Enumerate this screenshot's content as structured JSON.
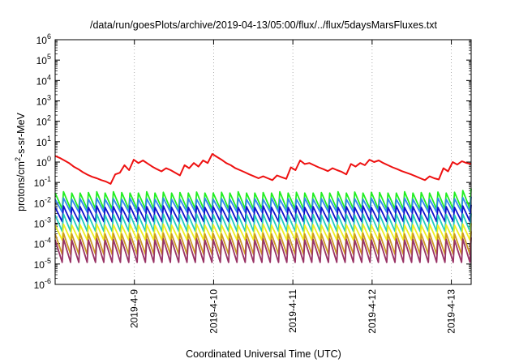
{
  "chart_data": {
    "type": "line",
    "title": "/data/run/goesPlots/archive/2019-04-13/05:00/flux/../flux/5daysMarsFluxes.txt",
    "xlabel": "Coordinated Universal Time (UTC)",
    "ylabel_base": "protons/cm",
    "ylabel_sup": "2",
    "ylabel_rest": "-s-sr-MeV",
    "yscale": "log",
    "ylim": [
      1e-06,
      1000000.0
    ],
    "ytick_exponents": [
      "-6",
      "-5",
      "-4",
      "-3",
      "-2",
      "-1",
      "0",
      "1",
      "2",
      "3",
      "4",
      "5",
      "6"
    ],
    "xlim": [
      0,
      5.25
    ],
    "xtick_labels": [
      "2019-4-9",
      "2019-4-10",
      "2019-4-11",
      "2019-4-12",
      "2019-4-13"
    ],
    "xtick_values": [
      1,
      2,
      3,
      4,
      5
    ],
    "grid": true,
    "legend": "none",
    "series": [
      {
        "color": "#ee1111",
        "values": [
          2.0,
          1.6,
          1.2,
          0.9,
          0.6,
          0.45,
          0.32,
          0.24,
          0.19,
          0.16,
          0.13,
          0.11,
          0.085,
          0.25,
          0.3,
          0.7,
          0.4,
          1.3,
          0.9,
          1.2,
          0.85,
          0.6,
          0.45,
          0.35,
          0.5,
          0.4,
          0.3,
          0.22,
          0.7,
          0.5,
          0.9,
          0.6,
          1.2,
          0.9,
          2.5,
          1.8,
          1.3,
          0.9,
          0.7,
          0.5,
          0.4,
          0.32,
          0.25,
          0.2,
          0.16,
          0.2,
          0.16,
          0.13,
          0.22,
          0.18,
          0.15,
          0.55,
          0.4,
          1.2,
          0.8,
          0.9,
          0.7,
          0.55,
          0.45,
          0.36,
          0.5,
          0.4,
          0.33,
          0.25,
          0.8,
          0.6,
          0.9,
          0.7,
          1.3,
          1.0,
          1.2,
          0.9,
          0.7,
          0.55,
          0.45,
          0.36,
          0.3,
          0.25,
          0.2,
          0.16,
          0.13,
          0.2,
          0.16,
          0.14,
          0.5,
          0.35,
          1.0,
          0.75,
          1.1,
          0.9,
          0.8
        ]
      },
      {
        "color": "#22ee22",
        "values": [
          0.03,
          0.035,
          0.03,
          0.03,
          0.032,
          0.035,
          0.03,
          0.035,
          0.032,
          0.03,
          0.03,
          0.035,
          0.03,
          0.033,
          0.03,
          0.032,
          0.03,
          0.034,
          0.03,
          0.03,
          0.033,
          0.03,
          0.035,
          0.03,
          0.03,
          0.032,
          0.03,
          0.035,
          0.03,
          0.033,
          0.03,
          0.03,
          0.032,
          0.03,
          0.035,
          0.03,
          0.034,
          0.03,
          0.033,
          0.032,
          0.03,
          0.03,
          0.035,
          0.03,
          0.032,
          0.03,
          0.034,
          0.03,
          0.033,
          0.04,
          0.05
        ]
      },
      {
        "color": "#3388ee",
        "values": [
          0.015,
          0.017,
          0.015,
          0.016,
          0.015,
          0.017,
          0.015,
          0.016,
          0.015,
          0.017,
          0.015,
          0.016,
          0.015,
          0.017,
          0.015,
          0.015,
          0.016,
          0.015,
          0.017,
          0.015,
          0.016,
          0.015,
          0.017,
          0.015,
          0.016,
          0.015,
          0.017,
          0.015,
          0.016,
          0.015,
          0.017,
          0.015,
          0.016,
          0.015,
          0.017,
          0.015,
          0.016,
          0.015,
          0.017,
          0.015,
          0.016,
          0.015,
          0.017,
          0.015,
          0.016,
          0.015,
          0.017,
          0.015,
          0.016,
          0.018,
          0.02
        ]
      },
      {
        "color": "#1111cc",
        "values": [
          0.006,
          0.007,
          0.006,
          0.0065,
          0.006,
          0.007,
          0.006,
          0.0065,
          0.006,
          0.007,
          0.006,
          0.0065,
          0.006,
          0.007,
          0.006,
          0.0065,
          0.006,
          0.007,
          0.006,
          0.0065,
          0.006,
          0.007,
          0.006,
          0.0065,
          0.006,
          0.007,
          0.006,
          0.0065,
          0.006,
          0.007,
          0.006,
          0.0065,
          0.006,
          0.007,
          0.006,
          0.0065,
          0.006,
          0.007,
          0.006,
          0.0065,
          0.006,
          0.007,
          0.006,
          0.0065,
          0.006,
          0.007,
          0.006,
          0.0065,
          0.006,
          0.007,
          0.008
        ]
      },
      {
        "color": "#22ccbb",
        "values": [
          0.0025,
          0.0028,
          0.0025,
          0.0027,
          0.0025,
          0.0028,
          0.0025,
          0.0027,
          0.0025,
          0.0028,
          0.0025,
          0.0027,
          0.0025,
          0.0028,
          0.0025,
          0.0027,
          0.0025,
          0.0028,
          0.0025,
          0.0027,
          0.0025,
          0.0028,
          0.0025,
          0.0027,
          0.0025,
          0.0028,
          0.0025,
          0.0027,
          0.0025,
          0.0028,
          0.0025,
          0.0027,
          0.0025,
          0.0028,
          0.0025,
          0.0027,
          0.0025,
          0.0028,
          0.0025,
          0.0027,
          0.0025,
          0.0028,
          0.0025,
          0.0027,
          0.0025,
          0.0028,
          0.0025,
          0.0027,
          0.0025,
          0.0028,
          0.003
        ]
      },
      {
        "color": "#eeee22",
        "values": [
          0.0008,
          0.0009,
          0.0008,
          0.00085,
          0.0008,
          0.0009,
          0.0008,
          0.00085,
          0.0008,
          0.0009,
          0.0008,
          0.00085,
          0.0008,
          0.0009,
          0.0008,
          0.00085,
          0.0008,
          0.0009,
          0.0008,
          0.00085,
          0.0008,
          0.0009,
          0.0008,
          0.00085,
          0.0008,
          0.0009,
          0.0008,
          0.00085,
          0.0008,
          0.0009,
          0.0008,
          0.00085,
          0.0008,
          0.0009,
          0.0008,
          0.00085,
          0.0008,
          0.0009,
          0.0008,
          0.00085,
          0.0008,
          0.0009,
          0.0008,
          0.00085,
          0.0008,
          0.0009,
          0.0008,
          0.00085,
          0.0008,
          0.0009,
          0.001
        ]
      },
      {
        "color": "#cc9922",
        "values": [
          0.0003,
          0.00033,
          0.0003,
          0.00032,
          0.0003,
          0.00033,
          0.0003,
          0.00032,
          0.0003,
          0.00033,
          0.0003,
          0.00032,
          0.0003,
          0.00033,
          0.0003,
          0.00032,
          0.0003,
          0.00033,
          0.0003,
          0.00032,
          0.0003,
          0.00033,
          0.0003,
          0.00032,
          0.0003,
          0.00033,
          0.0003,
          0.00032,
          0.0003,
          0.00033,
          0.0003,
          0.00032,
          0.0003,
          0.00033,
          0.0003,
          0.00032,
          0.0003,
          0.00033,
          0.0003,
          0.00032,
          0.0003,
          0.00033,
          0.0003,
          0.00032,
          0.0003,
          0.00033,
          0.0003,
          0.00032,
          0.0003,
          0.00033,
          0.0004
        ]
      },
      {
        "color": "#993366",
        "values": [
          0.00015,
          0.00017,
          0.00015,
          0.00016,
          0.00015,
          0.00017,
          0.00015,
          0.00016,
          0.00015,
          0.00017,
          0.00015,
          0.00016,
          0.00015,
          0.00017,
          0.00015,
          0.00016,
          0.00015,
          0.00017,
          0.00015,
          0.00016,
          0.00015,
          0.00017,
          0.00015,
          0.00016,
          0.00015,
          0.00017,
          0.00015,
          0.00016,
          0.00015,
          0.00017,
          0.00015,
          0.00016,
          0.00015,
          0.00017,
          0.00015,
          0.00016,
          0.00015,
          0.00017,
          0.00015,
          0.00016,
          0.00015,
          0.00017,
          0.00015,
          0.00016,
          0.00015,
          0.00017,
          0.00015,
          0.00016,
          0.00015,
          0.00017,
          0.0002
        ]
      }
    ],
    "sawtooth_min_values": [
      0.005,
      0.0035,
      0.0012,
      0.0004,
      0.00015,
      3e-05,
      1.2e-05
    ],
    "sawtooth_min_series": [
      1,
      2,
      3,
      4,
      5,
      6,
      7
    ]
  }
}
